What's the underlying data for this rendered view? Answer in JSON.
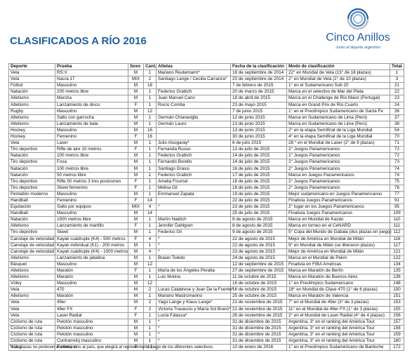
{
  "header": {
    "title": "CLASIFICADOS A RÍO 2016"
  },
  "logo": {
    "name": "Cinco Anillos",
    "tagline": "Junto al deporte argentino"
  },
  "table": {
    "columns": [
      "Deporte",
      "Prueba",
      "Sexo",
      "Cant.",
      "Atletas",
      "Fecha de la clasificación",
      "Modo de clasificación",
      "Total"
    ],
    "rows": [
      [
        "Vela",
        "RS:X",
        "M",
        1,
        "Mariano Reutemann*",
        "18 de septiembre de 2014",
        "22° en Mundial de Vela (13° de 18 plazas)",
        1
      ],
      [
        "Vela",
        "Nacra 17",
        "MIX",
        2,
        "Santiago Lange / Cecilia Carranza*",
        "20 de septiembre de 2014",
        "2° en Mundial de Vela (2° de 10 plazas)",
        3
      ],
      [
        "Fútbol",
        "Masculino",
        "M",
        18,
        null,
        "7 de febrero de 2015",
        "1° en el Sudamericano Sub 20",
        21
      ],
      [
        "Natación",
        "200 metros libre",
        "M",
        1,
        "Federico Grabich",
        "20 de marzo de 2015",
        "Marca en el selectivo de Mar del Plata",
        22
      ],
      [
        "Atletismo",
        "Marcha",
        "M",
        1,
        "Juan Manuel Cano",
        "18 de abril de 2015",
        "Marca en el Challenge de Río Maior (Portugal)",
        23
      ],
      [
        "Atletismo",
        "Lanzamiento de disco",
        "F",
        1,
        "Rocío Comba",
        "23 de mayo 2015",
        "Marca en Grand Prix de Río Cuarto",
        24
      ],
      [
        "Rugby",
        "Masculino",
        "M",
        12,
        null,
        "7 de junio 2015",
        "1° en el Preolímpico Sudamericano de Santa Fe",
        36
      ],
      [
        "Atletismo",
        "Salto con garrocha",
        "M",
        1,
        "Germán Chiaraviglio",
        "12 de junio 2015",
        "Marca en Sudamericano de Lima (Perú)",
        37
      ],
      [
        "Atletismo",
        "Lanzamiento de bala",
        "M",
        1,
        "Germán Lauro",
        "13 de junio 2015",
        "Marca en Sudamericano de Lima (Perú)",
        38
      ],
      [
        "Hockey",
        "Masculino",
        "M",
        16,
        null,
        "13 de junio 2015",
        "2° en la etapa Semifinal de la Liga Mundial",
        54
      ],
      [
        "Hockey",
        "Femenino",
        "F",
        16,
        null,
        "30 de junio 2015",
        "4° en la etapa Semifinal de la Liga Mundial",
        70
      ],
      [
        "Vela",
        "Laser",
        "M",
        1,
        "Julio Alsogaray*",
        "6 de julio 2015",
        "28 ° en el Mundial de Laser (2° de 9 plazas)",
        71
      ],
      [
        "Tiro deportivo",
        "Rifle de aire 10 metros",
        "F",
        1,
        "Fernanda Russo",
        "13 de julio de 2015",
        "2° Juegos Panamericanos",
        72
      ],
      [
        "Natación",
        "100 metros libre",
        "M",
        1,
        "Federico Grabich",
        "14 de julio de 2015",
        "1° Juegos Panamericanos",
        72
      ],
      [
        "Tiro deportivo",
        "Fosa",
        "M",
        1,
        "Fernando Borello",
        "14 de julio de 2015",
        "2° Juegos Panamericanos",
        73
      ],
      [
        "Natación",
        "100 metros libre",
        "M",
        1,
        "Santiago Grassi",
        "16 de julio de 2015",
        "2° Juegos Panamericanos",
        74
      ],
      [
        "Natación",
        "50 metros libre",
        "M",
        1,
        "Federico Grabich",
        "17 de julio de 2015",
        "Marca en Juegos Panamericanos",
        74
      ],
      [
        "Tiro deportivo",
        "Rifle 50 metros 3 tres posiciones",
        "F",
        1,
        "Amelia Fournel",
        "18 de julio de 2015",
        "2° Juegos Panamericanos",
        75
      ],
      [
        "Tiro deportivo",
        "Skeet femenino",
        "F",
        1,
        "Melisa Gil",
        "18 de julio de 2015",
        "2° Juegos Panamericanos",
        76
      ],
      [
        "Pentatlón moderno",
        "Masculino",
        "M",
        1,
        "Emmanuel Zapata",
        "19 de julio de 2015",
        "Mejor sudamericano en Juegos Panamericanos",
        77
      ],
      [
        "Handball",
        "Femenino",
        "F",
        14,
        null,
        "22 de julio de 2015",
        "Finalista Juegos Panamericanos",
        91
      ],
      [
        "Equitación",
        "Salto por equipos",
        "MIX",
        4,
        "*",
        "23 de julio de 2015",
        "2° lugar en los Juegos Panamericanos",
        95
      ],
      [
        "Handball",
        "Masculino",
        "M",
        14,
        null,
        "25 de julio de 2015",
        "Finalista Juegos Panamericanos",
        109
      ],
      [
        "Natación",
        "1500 metros libre",
        "M",
        1,
        "Martín Naidich",
        "8 de agosto de 2015",
        "Marca en Mundial de Kazán",
        110
      ],
      [
        "Atletismo",
        "Lanzamiento de martillo",
        "F",
        1,
        "Jennifer Dahlgren",
        "8 de agosto de 2015",
        "Marca en torneo en el CeNARD",
        111
      ],
      [
        "Tiro deportivo",
        "Skeet",
        "M",
        1,
        "Federico Gil",
        "9 de agosto de 2015",
        "5° Copa del Mundo de Gabala (dos plazas en juego)",
        112
      ],
      [
        "Canotaje de velocidad",
        "Kayak cuádruple (K4) - 500 metros",
        "F",
        4,
        "*",
        "22 de agosto de 2015",
        "Mejor de América en Mundial de Milán",
        116
      ],
      [
        "Canotaje de velocidad",
        "Kayak individual (K1) - 200 metros",
        "M",
        1,
        "*",
        "22 de agosto de 2015",
        "9° en Mundial de Milán (se liberaron plazas)",
        117
      ],
      [
        "Canotaje de velocidad",
        "Kayak cuádruple (K4) - 1000 metros",
        "M",
        4,
        "*",
        "23 de agosto de 2015",
        "Mejor de América en Mundial de Milán",
        121
      ],
      [
        "Atletismo",
        "Lanzamiento de jabalina",
        "M",
        1,
        "Braian Toledo",
        "24 de agosto de 2015",
        "Marca en el Mundial de Pekín",
        122
      ],
      [
        "Básquet",
        "Masculino",
        "M",
        12,
        null,
        "12 de septiembre de 2015",
        "Finalista en FIBA Américas",
        134
      ],
      [
        "Atletismo",
        "Maratón",
        "F",
        1,
        "María de los Ángeles Peralta",
        "27 de septiembre de 2015",
        "Marca en Maratón de Berlín",
        135
      ],
      [
        "Atletismo",
        "Maratón",
        "M",
        1,
        "Luis Molina",
        "11 de octubre de 2015",
        "Marca en Maratón de Buenos Aires",
        136
      ],
      [
        "Vóley",
        "Masculino",
        "M",
        12,
        null,
        "16 de octubre de 2015",
        "1° en Preolímpico Sudamericano",
        148
      ],
      [
        "Vela",
        "470",
        "M",
        2,
        "Lucas Calabrese y Juan De la Fuente*",
        "16 de octubre de 2015",
        "18° en Mundial de Clase 470 (1° de 6 plazas)",
        150
      ],
      [
        "Atletismo",
        "Maratón",
        "M",
        1,
        "Mariano Mastromarino",
        "25 de octubre de 2015",
        "Marca en Maratón de Valencia",
        151
      ],
      [
        "Vela",
        "49er",
        "M",
        2,
        "Yago Lange y Klaus Lange*",
        "21 de noviembre de 2015",
        "7° en el Mundial de 49er (3° de 3 plazas)",
        153
      ],
      [
        "Vela",
        "49er FX",
        "F",
        2,
        "Victoria Travascio y María Sol Branz*",
        "21 de noviembre de 2015",
        "11° en el Mundial de 49er FX (1° de 3 plazas)",
        155
      ],
      [
        "Vela",
        "Laser Radial",
        "F",
        1,
        "Lucía Falasca*",
        "26 de noviembre de 2015",
        "2° en el Mundial de Laser Radial (4° de 4 plazas)",
        156
      ],
      [
        "Ciclismo de ruta",
        "Pelotón masculino",
        "M",
        1,
        "*",
        "31 de diciembre de 2015",
        "Argentina, 3° en el ranking del América Tour",
        157
      ],
      [
        "Ciclismo de ruta",
        "Pelotón masculino",
        "M",
        1,
        "*",
        "31 de diciembre de 2015",
        "Argentina, 3° en el ranking del América Tour",
        158
      ],
      [
        "Ciclismo de ruta",
        "Pelotón masculino",
        "M",
        1,
        "*",
        "31 de diciembre de 2015",
        "Argentina, 3° en el ranking del América Tour",
        159
      ],
      [
        "Ciclismo de ruta",
        "Contrarreloj masculino",
        "M",
        1,
        "*",
        "31 de diciembre de 2015",
        "Argentina, 3° en el ranking del América Tour",
        160
      ],
      [
        "Vóley",
        "Femenino",
        "F",
        12,
        null,
        "10 de enero de 2016",
        "1° en el Preolímpico Sudamericano de Bariloche",
        172
      ]
    ]
  },
  "footnote": "*Las plazas no pertecen al atleta, sino al país, que elegirá al representante luego de los diferentes selectivos."
}
